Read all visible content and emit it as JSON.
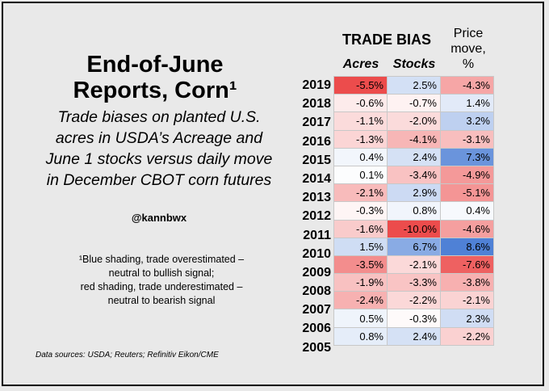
{
  "title_line1": "End-of-June",
  "title_line2": "Reports, Corn¹",
  "subtitle_line1": "Trade biases on planted U.S.",
  "subtitle_line2": "acres in USDA’s Acreage and",
  "subtitle_line3": "June 1 stocks versus daily move",
  "subtitle_line4": "in December CBOT corn futures",
  "handle": "@kannbwx",
  "footnote_line1": "¹Blue shading, trade overestimated –",
  "footnote_line2": "neutral to bullish signal;",
  "footnote_line3": "red shading, trade underestimated –",
  "footnote_line4": "neutral to bearish signal",
  "sources": "Data sources: USDA; Reuters; Refinitiv Eikon/CME",
  "header_bias": "TRADE BIAS",
  "header_acres": "Acres",
  "header_stocks": "Stocks",
  "header_price_line1": "Price",
  "header_price_line2": "move,",
  "header_price_line3": "%",
  "colors": {
    "blue": "#4f81d6",
    "red": "#ec4c4c",
    "white": "#ffffff"
  },
  "chart_data": {
    "type": "table",
    "columns": [
      "Acres",
      "Stocks",
      "Price move, %"
    ],
    "rows": [
      {
        "year": "2019",
        "acres": "-5.5%",
        "stocks": "2.5%",
        "price": "-4.3%",
        "a": -5.5,
        "s": 2.5,
        "p": -4.3
      },
      {
        "year": "2018",
        "acres": "-0.6%",
        "stocks": "-0.7%",
        "price": "1.4%",
        "a": -0.6,
        "s": -0.7,
        "p": 1.4
      },
      {
        "year": "2017",
        "acres": "-1.1%",
        "stocks": "-2.0%",
        "price": "3.2%",
        "a": -1.1,
        "s": -2.0,
        "p": 3.2
      },
      {
        "year": "2016",
        "acres": "-1.3%",
        "stocks": "-4.1%",
        "price": "-3.1%",
        "a": -1.3,
        "s": -4.1,
        "p": -3.1
      },
      {
        "year": "2015",
        "acres": "0.4%",
        "stocks": "2.4%",
        "price": "7.3%",
        "a": 0.4,
        "s": 2.4,
        "p": 7.3
      },
      {
        "year": "2014",
        "acres": "0.1%",
        "stocks": "-3.4%",
        "price": "-4.9%",
        "a": 0.1,
        "s": -3.4,
        "p": -4.9
      },
      {
        "year": "2013",
        "acres": "-2.1%",
        "stocks": "2.9%",
        "price": "-5.1%",
        "a": -2.1,
        "s": 2.9,
        "p": -5.1
      },
      {
        "year": "2012",
        "acres": "-0.3%",
        "stocks": "0.8%",
        "price": "0.4%",
        "a": -0.3,
        "s": 0.8,
        "p": 0.4
      },
      {
        "year": "2011",
        "acres": "-1.6%",
        "stocks": "-10.0%",
        "price": "-4.6%",
        "a": -1.6,
        "s": -10.0,
        "p": -4.6
      },
      {
        "year": "2010",
        "acres": "1.5%",
        "stocks": "6.7%",
        "price": "8.6%",
        "a": 1.5,
        "s": 6.7,
        "p": 8.6
      },
      {
        "year": "2009",
        "acres": "-3.5%",
        "stocks": "-2.1%",
        "price": "-7.6%",
        "a": -3.5,
        "s": -2.1,
        "p": -7.6
      },
      {
        "year": "2008",
        "acres": "-1.9%",
        "stocks": "-3.3%",
        "price": "-3.8%",
        "a": -1.9,
        "s": -3.3,
        "p": -3.8
      },
      {
        "year": "2007",
        "acres": "-2.4%",
        "stocks": "-2.2%",
        "price": "-2.1%",
        "a": -2.4,
        "s": -2.2,
        "p": -2.1
      },
      {
        "year": "2006",
        "acres": "0.5%",
        "stocks": "-0.3%",
        "price": "2.3%",
        "a": 0.5,
        "s": -0.3,
        "p": 2.3
      },
      {
        "year": "2005",
        "acres": "0.8%",
        "stocks": "2.4%",
        "price": "-2.2%",
        "a": 0.8,
        "s": 2.4,
        "p": -2.2
      }
    ]
  }
}
